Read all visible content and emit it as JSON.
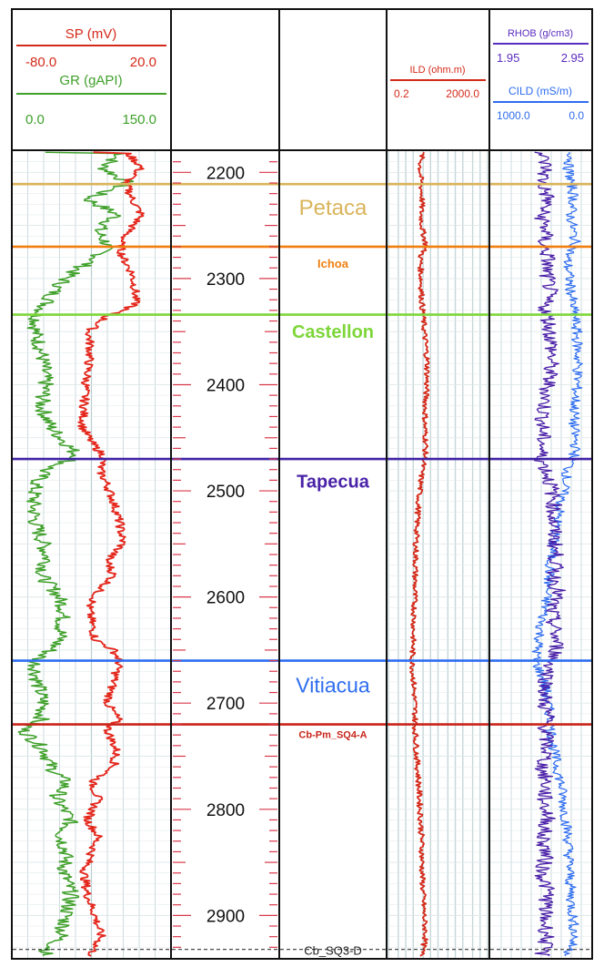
{
  "headers": {
    "sp_title": "SP (mV)",
    "sp_range_left": "-80.0",
    "sp_range_right": "20.0",
    "gr_title": "GR (gAPI)",
    "gr_range_left": "0.0",
    "gr_range_right": "150.0",
    "ild_title": "ILD (ohm.m)",
    "ild_range_left": "0.2",
    "ild_range_right": "2000.0",
    "rhob_title": "RHOB (g/cm3)",
    "rhob_range_left": "1.95",
    "rhob_range_right": "2.95",
    "cild_title": "CILD (mS/m)",
    "cild_range_left": "1000.0",
    "cild_range_right": "0.0"
  },
  "colors": {
    "sp": "#e4261b",
    "gr": "#3fa02a",
    "ild": "#d42a1a",
    "rhob": "#4a1fa8",
    "cild": "#2d6cf0",
    "grid": "#b8ccd0",
    "frame": "#111111"
  },
  "chart_data": {
    "type": "line",
    "title": "",
    "ylabel": "",
    "depth_ticks": [
      2200,
      2300,
      2400,
      2500,
      2600,
      2700,
      2800,
      2900
    ],
    "depth_range": [
      2180,
      2940
    ],
    "tracks": [
      {
        "name": "SP",
        "unit": "mV",
        "range": [
          -80.0,
          20.0
        ]
      },
      {
        "name": "GR",
        "unit": "gAPI",
        "range": [
          0.0,
          150.0
        ]
      },
      {
        "name": "ILD",
        "unit": "ohm.m",
        "range": [
          0.2,
          2000.0
        ],
        "scale": "log"
      },
      {
        "name": "RHOB",
        "unit": "g/cm3",
        "range": [
          1.95,
          2.95
        ]
      },
      {
        "name": "CILD",
        "unit": "mS/m",
        "range": [
          1000.0,
          0.0
        ]
      }
    ],
    "formations": [
      {
        "label": "Petaca",
        "top": 2211,
        "color": "#d9b45a"
      },
      {
        "label": "Ichoa",
        "top": 2270,
        "color": "#f07f10"
      },
      {
        "label": "Castellon",
        "top": 2334,
        "color": "#7ed63a"
      },
      {
        "label": "Tapecua",
        "top": 2470,
        "color": "#4023a6"
      },
      {
        "label": "Vitiacua",
        "top": 2660,
        "color": "#2f6ef0"
      },
      {
        "label": "Cb-Pm_SQ4-A",
        "top": 2720,
        "color": "#c8241a"
      },
      {
        "label": "Cb_SQ3-D",
        "top": 2932,
        "color": "#333333"
      }
    ],
    "series": [
      {
        "name": "SP",
        "x_units": "mV",
        "points": [
          [
            2182,
            -7
          ],
          [
            2195,
            2
          ],
          [
            2210,
            -8
          ],
          [
            2225,
            -4
          ],
          [
            2240,
            2
          ],
          [
            2255,
            -6
          ],
          [
            2268,
            -12
          ],
          [
            2280,
            -10
          ],
          [
            2295,
            -4
          ],
          [
            2310,
            -2
          ],
          [
            2325,
            -2
          ],
          [
            2335,
            -20
          ],
          [
            2350,
            -32
          ],
          [
            2365,
            -31
          ],
          [
            2380,
            -32
          ],
          [
            2400,
            -34
          ],
          [
            2420,
            -35
          ],
          [
            2440,
            -36
          ],
          [
            2455,
            -30
          ],
          [
            2468,
            -22
          ],
          [
            2480,
            -25
          ],
          [
            2495,
            -20
          ],
          [
            2510,
            -16
          ],
          [
            2530,
            -12
          ],
          [
            2550,
            -10
          ],
          [
            2565,
            -20
          ],
          [
            2580,
            -16
          ],
          [
            2595,
            -26
          ],
          [
            2610,
            -32
          ],
          [
            2625,
            -30
          ],
          [
            2640,
            -28
          ],
          [
            2650,
            -16
          ],
          [
            2660,
            -12
          ],
          [
            2680,
            -16
          ],
          [
            2700,
            -20
          ],
          [
            2715,
            -13
          ],
          [
            2725,
            -20
          ],
          [
            2745,
            -14
          ],
          [
            2760,
            -16
          ],
          [
            2775,
            -30
          ],
          [
            2790,
            -26
          ],
          [
            2810,
            -33
          ],
          [
            2825,
            -26
          ],
          [
            2840,
            -30
          ],
          [
            2860,
            -35
          ],
          [
            2880,
            -33
          ],
          [
            2900,
            -28
          ],
          [
            2920,
            -24
          ],
          [
            2935,
            -30
          ]
        ]
      },
      {
        "name": "GR",
        "x_units": "gAPI",
        "points": [
          [
            2182,
            105
          ],
          [
            2195,
            85
          ],
          [
            2210,
            110
          ],
          [
            2225,
            70
          ],
          [
            2240,
            100
          ],
          [
            2255,
            80
          ],
          [
            2268,
            90
          ],
          [
            2280,
            80
          ],
          [
            2295,
            55
          ],
          [
            2310,
            40
          ],
          [
            2325,
            30
          ],
          [
            2335,
            22
          ],
          [
            2350,
            20
          ],
          [
            2365,
            25
          ],
          [
            2380,
            28
          ],
          [
            2400,
            30
          ],
          [
            2420,
            26
          ],
          [
            2440,
            35
          ],
          [
            2455,
            50
          ],
          [
            2468,
            62
          ],
          [
            2480,
            30
          ],
          [
            2495,
            20
          ],
          [
            2510,
            18
          ],
          [
            2530,
            20
          ],
          [
            2550,
            28
          ],
          [
            2565,
            32
          ],
          [
            2580,
            26
          ],
          [
            2595,
            40
          ],
          [
            2610,
            48
          ],
          [
            2625,
            46
          ],
          [
            2640,
            44
          ],
          [
            2650,
            35
          ],
          [
            2660,
            20
          ],
          [
            2680,
            22
          ],
          [
            2700,
            28
          ],
          [
            2715,
            26
          ],
          [
            2725,
            8
          ],
          [
            2745,
            30
          ],
          [
            2760,
            35
          ],
          [
            2775,
            50
          ],
          [
            2790,
            40
          ],
          [
            2810,
            55
          ],
          [
            2825,
            45
          ],
          [
            2840,
            50
          ],
          [
            2860,
            48
          ],
          [
            2880,
            55
          ],
          [
            2900,
            50
          ],
          [
            2920,
            45
          ],
          [
            2935,
            30
          ]
        ]
      },
      {
        "name": "ILD",
        "x_units": "ohm.m",
        "points": [
          [
            2182,
            4.6
          ],
          [
            2195,
            3.8
          ],
          [
            2210,
            4.1
          ],
          [
            2225,
            4.6
          ],
          [
            2240,
            4.2
          ],
          [
            2255,
            4.8
          ],
          [
            2268,
            6.5
          ],
          [
            2280,
            3.9
          ],
          [
            2295,
            4.1
          ],
          [
            2310,
            4.3
          ],
          [
            2325,
            4.6
          ],
          [
            2335,
            5.0
          ],
          [
            2350,
            5.6
          ],
          [
            2365,
            6.6
          ],
          [
            2380,
            7.4
          ],
          [
            2400,
            7.0
          ],
          [
            2420,
            6.2
          ],
          [
            2440,
            5.9
          ],
          [
            2455,
            6.5
          ],
          [
            2468,
            6.0
          ],
          [
            2480,
            4.5
          ],
          [
            2495,
            3.9
          ],
          [
            2510,
            3.3
          ],
          [
            2530,
            2.9
          ],
          [
            2550,
            2.6
          ],
          [
            2565,
            2.5
          ],
          [
            2580,
            2.4
          ],
          [
            2595,
            2.3
          ],
          [
            2610,
            2.2
          ],
          [
            2625,
            2.1
          ],
          [
            2640,
            2.0
          ],
          [
            2650,
            1.9
          ],
          [
            2660,
            1.8
          ],
          [
            2680,
            2.1
          ],
          [
            2700,
            2.3
          ],
          [
            2715,
            2.4
          ],
          [
            2725,
            2.4
          ],
          [
            2745,
            2.7
          ],
          [
            2760,
            3.0
          ],
          [
            2775,
            3.3
          ],
          [
            2790,
            3.6
          ],
          [
            2810,
            4.0
          ],
          [
            2825,
            4.3
          ],
          [
            2840,
            4.5
          ],
          [
            2860,
            4.6
          ],
          [
            2880,
            5.0
          ],
          [
            2900,
            5.5
          ],
          [
            2920,
            6.3
          ],
          [
            2935,
            4.5
          ]
        ]
      },
      {
        "name": "RHOB",
        "x_units": "g/cm3",
        "points": [
          [
            2182,
            2.45
          ],
          [
            2195,
            2.5
          ],
          [
            2210,
            2.46
          ],
          [
            2225,
            2.52
          ],
          [
            2240,
            2.45
          ],
          [
            2255,
            2.5
          ],
          [
            2268,
            2.47
          ],
          [
            2280,
            2.52
          ],
          [
            2295,
            2.5
          ],
          [
            2310,
            2.54
          ],
          [
            2325,
            2.48
          ],
          [
            2335,
            2.52
          ],
          [
            2350,
            2.54
          ],
          [
            2365,
            2.56
          ],
          [
            2380,
            2.55
          ],
          [
            2400,
            2.52
          ],
          [
            2420,
            2.48
          ],
          [
            2440,
            2.46
          ],
          [
            2455,
            2.47
          ],
          [
            2468,
            2.44
          ],
          [
            2480,
            2.5
          ],
          [
            2495,
            2.55
          ],
          [
            2510,
            2.58
          ],
          [
            2530,
            2.57
          ],
          [
            2550,
            2.59
          ],
          [
            2565,
            2.6
          ],
          [
            2580,
            2.58
          ],
          [
            2595,
            2.62
          ],
          [
            2610,
            2.55
          ],
          [
            2625,
            2.57
          ],
          [
            2640,
            2.6
          ],
          [
            2650,
            2.61
          ],
          [
            2660,
            2.56
          ],
          [
            2680,
            2.5
          ],
          [
            2700,
            2.48
          ],
          [
            2715,
            2.52
          ],
          [
            2725,
            2.49
          ],
          [
            2745,
            2.51
          ],
          [
            2760,
            2.46
          ],
          [
            2775,
            2.5
          ],
          [
            2790,
            2.48
          ],
          [
            2810,
            2.52
          ],
          [
            2825,
            2.46
          ],
          [
            2840,
            2.5
          ],
          [
            2860,
            2.46
          ],
          [
            2880,
            2.52
          ],
          [
            2900,
            2.48
          ],
          [
            2920,
            2.51
          ],
          [
            2935,
            2.46
          ]
        ]
      },
      {
        "name": "CILD",
        "x_units": "mS/m",
        "points": [
          [
            2182,
            180
          ],
          [
            2195,
            230
          ],
          [
            2210,
            190
          ],
          [
            2225,
            170
          ],
          [
            2240,
            200
          ],
          [
            2255,
            175
          ],
          [
            2268,
            150
          ],
          [
            2280,
            240
          ],
          [
            2295,
            220
          ],
          [
            2310,
            200
          ],
          [
            2325,
            180
          ],
          [
            2335,
            160
          ],
          [
            2350,
            140
          ],
          [
            2365,
            130
          ],
          [
            2380,
            125
          ],
          [
            2400,
            135
          ],
          [
            2420,
            160
          ],
          [
            2440,
            170
          ],
          [
            2455,
            150
          ],
          [
            2468,
            165
          ],
          [
            2480,
            230
          ],
          [
            2495,
            260
          ],
          [
            2510,
            300
          ],
          [
            2530,
            340
          ],
          [
            2550,
            380
          ],
          [
            2565,
            400
          ],
          [
            2580,
            420
          ],
          [
            2595,
            440
          ],
          [
            2610,
            460
          ],
          [
            2625,
            500
          ],
          [
            2640,
            520
          ],
          [
            2650,
            540
          ],
          [
            2660,
            560
          ],
          [
            2680,
            470
          ],
          [
            2700,
            430
          ],
          [
            2715,
            410
          ],
          [
            2725,
            400
          ],
          [
            2745,
            370
          ],
          [
            2760,
            340
          ],
          [
            2775,
            300
          ],
          [
            2790,
            280
          ],
          [
            2810,
            250
          ],
          [
            2825,
            230
          ],
          [
            2840,
            220
          ],
          [
            2860,
            210
          ],
          [
            2880,
            200
          ],
          [
            2900,
            180
          ],
          [
            2920,
            160
          ],
          [
            2935,
            220
          ]
        ]
      }
    ]
  }
}
